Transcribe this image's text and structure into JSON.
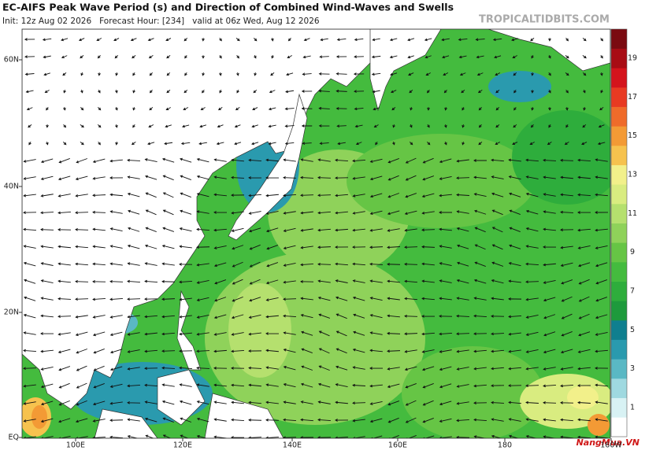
{
  "header": {
    "title": "EC-AIFS Peak Wave Period (s) and Direction of Combined Wind-Waves and Swells",
    "subtitle": "Init: 12z Aug 02 2026   Forecast Hour: [234]   valid at 06z Wed, Aug 12 2026",
    "site": "TROPICALTIDBITS.COM"
  },
  "map": {
    "lat_labels": [
      "60N",
      "40N",
      "20N",
      "EQ"
    ],
    "lon_labels": [
      "100E",
      "120E",
      "140E",
      "160E",
      "180",
      "160W"
    ]
  },
  "colorbar": {
    "ticks": [
      1,
      3,
      5,
      7,
      9,
      11,
      13,
      15,
      17,
      19
    ],
    "colors": [
      "#ffffff",
      "#d8f2f4",
      "#9fd9e0",
      "#5ab8c4",
      "#2a9aae",
      "#0f7f8f",
      "#1e9a3c",
      "#2ead3c",
      "#44bb3e",
      "#66c545",
      "#8fd25a",
      "#b5e06e",
      "#d9ec80",
      "#f2f08a",
      "#f6c24e",
      "#f39a35",
      "#ef6b2a",
      "#e83a22",
      "#d4141c",
      "#a80c14",
      "#7a0a10"
    ]
  },
  "watermark": "NangMua.VN"
}
